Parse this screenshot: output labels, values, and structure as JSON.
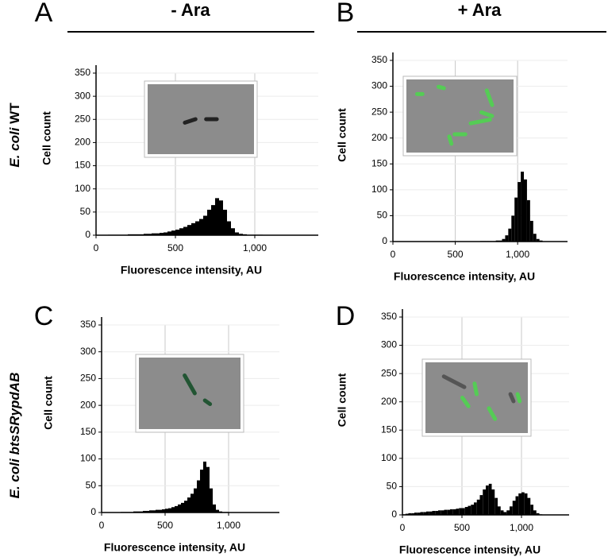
{
  "columns": [
    "- Ara",
    "+ Ara"
  ],
  "rows": [
    {
      "species": "E. coli",
      "strain": "WT"
    },
    {
      "species": "E. coli",
      "strain": "btsSRypdAB"
    }
  ],
  "chart_data": [
    {
      "type": "histogram",
      "panel_label": "A",
      "x_label": "Fluorescence intensity, AU",
      "y_label": "Cell count",
      "color": "#000000",
      "grid": true,
      "bins": [
        0,
        25,
        50,
        75,
        100,
        125,
        150,
        175,
        200,
        225,
        250,
        275,
        300,
        325,
        350,
        375,
        400,
        425,
        450,
        475,
        500,
        525,
        550,
        575,
        600,
        625,
        650,
        675,
        700,
        725,
        750,
        775,
        800,
        825,
        850,
        875,
        900,
        925,
        950,
        975,
        1000,
        1025,
        1050,
        1075,
        1100,
        1125,
        1150,
        1175,
        1200
      ],
      "values": [
        0,
        0,
        0,
        1,
        1,
        1,
        1,
        1,
        2,
        2,
        2,
        2,
        3,
        3,
        4,
        4,
        5,
        6,
        8,
        10,
        12,
        15,
        18,
        22,
        26,
        30,
        35,
        42,
        55,
        65,
        80,
        75,
        55,
        30,
        15,
        6,
        3,
        2,
        1,
        1,
        1,
        1,
        0,
        0,
        0,
        0,
        0,
        0
      ],
      "xlim": [
        0,
        1400
      ],
      "xticks": [
        0,
        500,
        {
          "value": 1000,
          "label": "1,000"
        }
      ],
      "ylim": [
        0,
        350
      ],
      "yticks": [
        0,
        50,
        100,
        150,
        200,
        250,
        300,
        350
      ]
    },
    {
      "type": "histogram",
      "panel_label": "B",
      "x_label": "Fluorescence intensity, AU",
      "y_label": "Cell count",
      "color": "#000000",
      "grid": true,
      "bins": [
        0,
        25,
        50,
        75,
        100,
        125,
        150,
        175,
        200,
        225,
        250,
        275,
        300,
        325,
        350,
        375,
        400,
        425,
        450,
        475,
        500,
        525,
        550,
        575,
        600,
        625,
        650,
        675,
        700,
        725,
        750,
        775,
        800,
        825,
        850,
        875,
        900,
        925,
        950,
        975,
        1000,
        1025,
        1050,
        1075,
        1100,
        1125,
        1150,
        1175,
        1200
      ],
      "values": [
        0,
        0,
        0,
        0,
        0,
        0,
        0,
        0,
        0,
        0,
        0,
        0,
        0,
        0,
        0,
        0,
        0,
        0,
        0,
        0,
        0,
        0,
        0,
        0,
        0,
        0,
        0,
        0,
        1,
        1,
        1,
        1,
        1,
        2,
        2,
        5,
        12,
        25,
        50,
        85,
        115,
        135,
        120,
        80,
        40,
        15,
        5,
        2
      ],
      "xlim": [
        0,
        1400
      ],
      "xticks": [
        0,
        500,
        {
          "value": 1000,
          "label": "1,000"
        }
      ],
      "ylim": [
        0,
        350
      ],
      "yticks": [
        0,
        50,
        100,
        150,
        200,
        250,
        300,
        350
      ]
    },
    {
      "type": "histogram",
      "panel_label": "C",
      "x_label": "Fluorescence intensity, AU",
      "y_label": "Cell count",
      "color": "#000000",
      "grid": true,
      "bins": [
        0,
        25,
        50,
        75,
        100,
        125,
        150,
        175,
        200,
        225,
        250,
        275,
        300,
        325,
        350,
        375,
        400,
        425,
        450,
        475,
        500,
        525,
        550,
        575,
        600,
        625,
        650,
        675,
        700,
        725,
        750,
        775,
        800,
        825,
        850,
        875,
        900,
        925,
        950,
        975,
        1000,
        1025,
        1050,
        1075,
        1100,
        1125,
        1150,
        1175,
        1200
      ],
      "values": [
        0,
        0,
        0,
        0,
        0,
        0,
        1,
        1,
        1,
        1,
        2,
        2,
        2,
        3,
        3,
        4,
        4,
        5,
        5,
        6,
        7,
        8,
        10,
        12,
        15,
        18,
        22,
        28,
        35,
        45,
        60,
        80,
        95,
        85,
        45,
        15,
        5,
        2,
        1,
        1,
        0,
        0,
        0,
        0,
        0,
        0,
        0,
        0
      ],
      "xlim": [
        0,
        1400
      ],
      "xticks": [
        0,
        500,
        {
          "value": 1000,
          "label": "1,000"
        }
      ],
      "ylim": [
        0,
        350
      ],
      "yticks": [
        0,
        50,
        100,
        150,
        200,
        250,
        300,
        350
      ]
    },
    {
      "type": "histogram",
      "panel_label": "D",
      "x_label": "Fluorescence intensity, AU",
      "y_label": "Cell count",
      "color": "#000000",
      "grid": true,
      "bins": [
        0,
        25,
        50,
        75,
        100,
        125,
        150,
        175,
        200,
        225,
        250,
        275,
        300,
        325,
        350,
        375,
        400,
        425,
        450,
        475,
        500,
        525,
        550,
        575,
        600,
        625,
        650,
        675,
        700,
        725,
        750,
        775,
        800,
        825,
        850,
        875,
        900,
        925,
        950,
        975,
        1000,
        1025,
        1050,
        1075,
        1100,
        1125,
        1150,
        1175,
        1200
      ],
      "values": [
        1,
        2,
        3,
        3,
        4,
        4,
        5,
        5,
        6,
        6,
        7,
        7,
        8,
        8,
        9,
        9,
        10,
        10,
        11,
        12,
        12,
        14,
        16,
        18,
        22,
        27,
        35,
        45,
        52,
        55,
        45,
        30,
        15,
        8,
        5,
        8,
        15,
        25,
        33,
        38,
        40,
        38,
        30,
        18,
        8,
        3,
        1,
        0
      ],
      "xlim": [
        0,
        1400
      ],
      "xticks": [
        0,
        500,
        {
          "value": 1000,
          "label": "1,000"
        }
      ],
      "ylim": [
        0,
        350
      ],
      "yticks": [
        0,
        50,
        100,
        150,
        200,
        250,
        300,
        350
      ]
    }
  ]
}
